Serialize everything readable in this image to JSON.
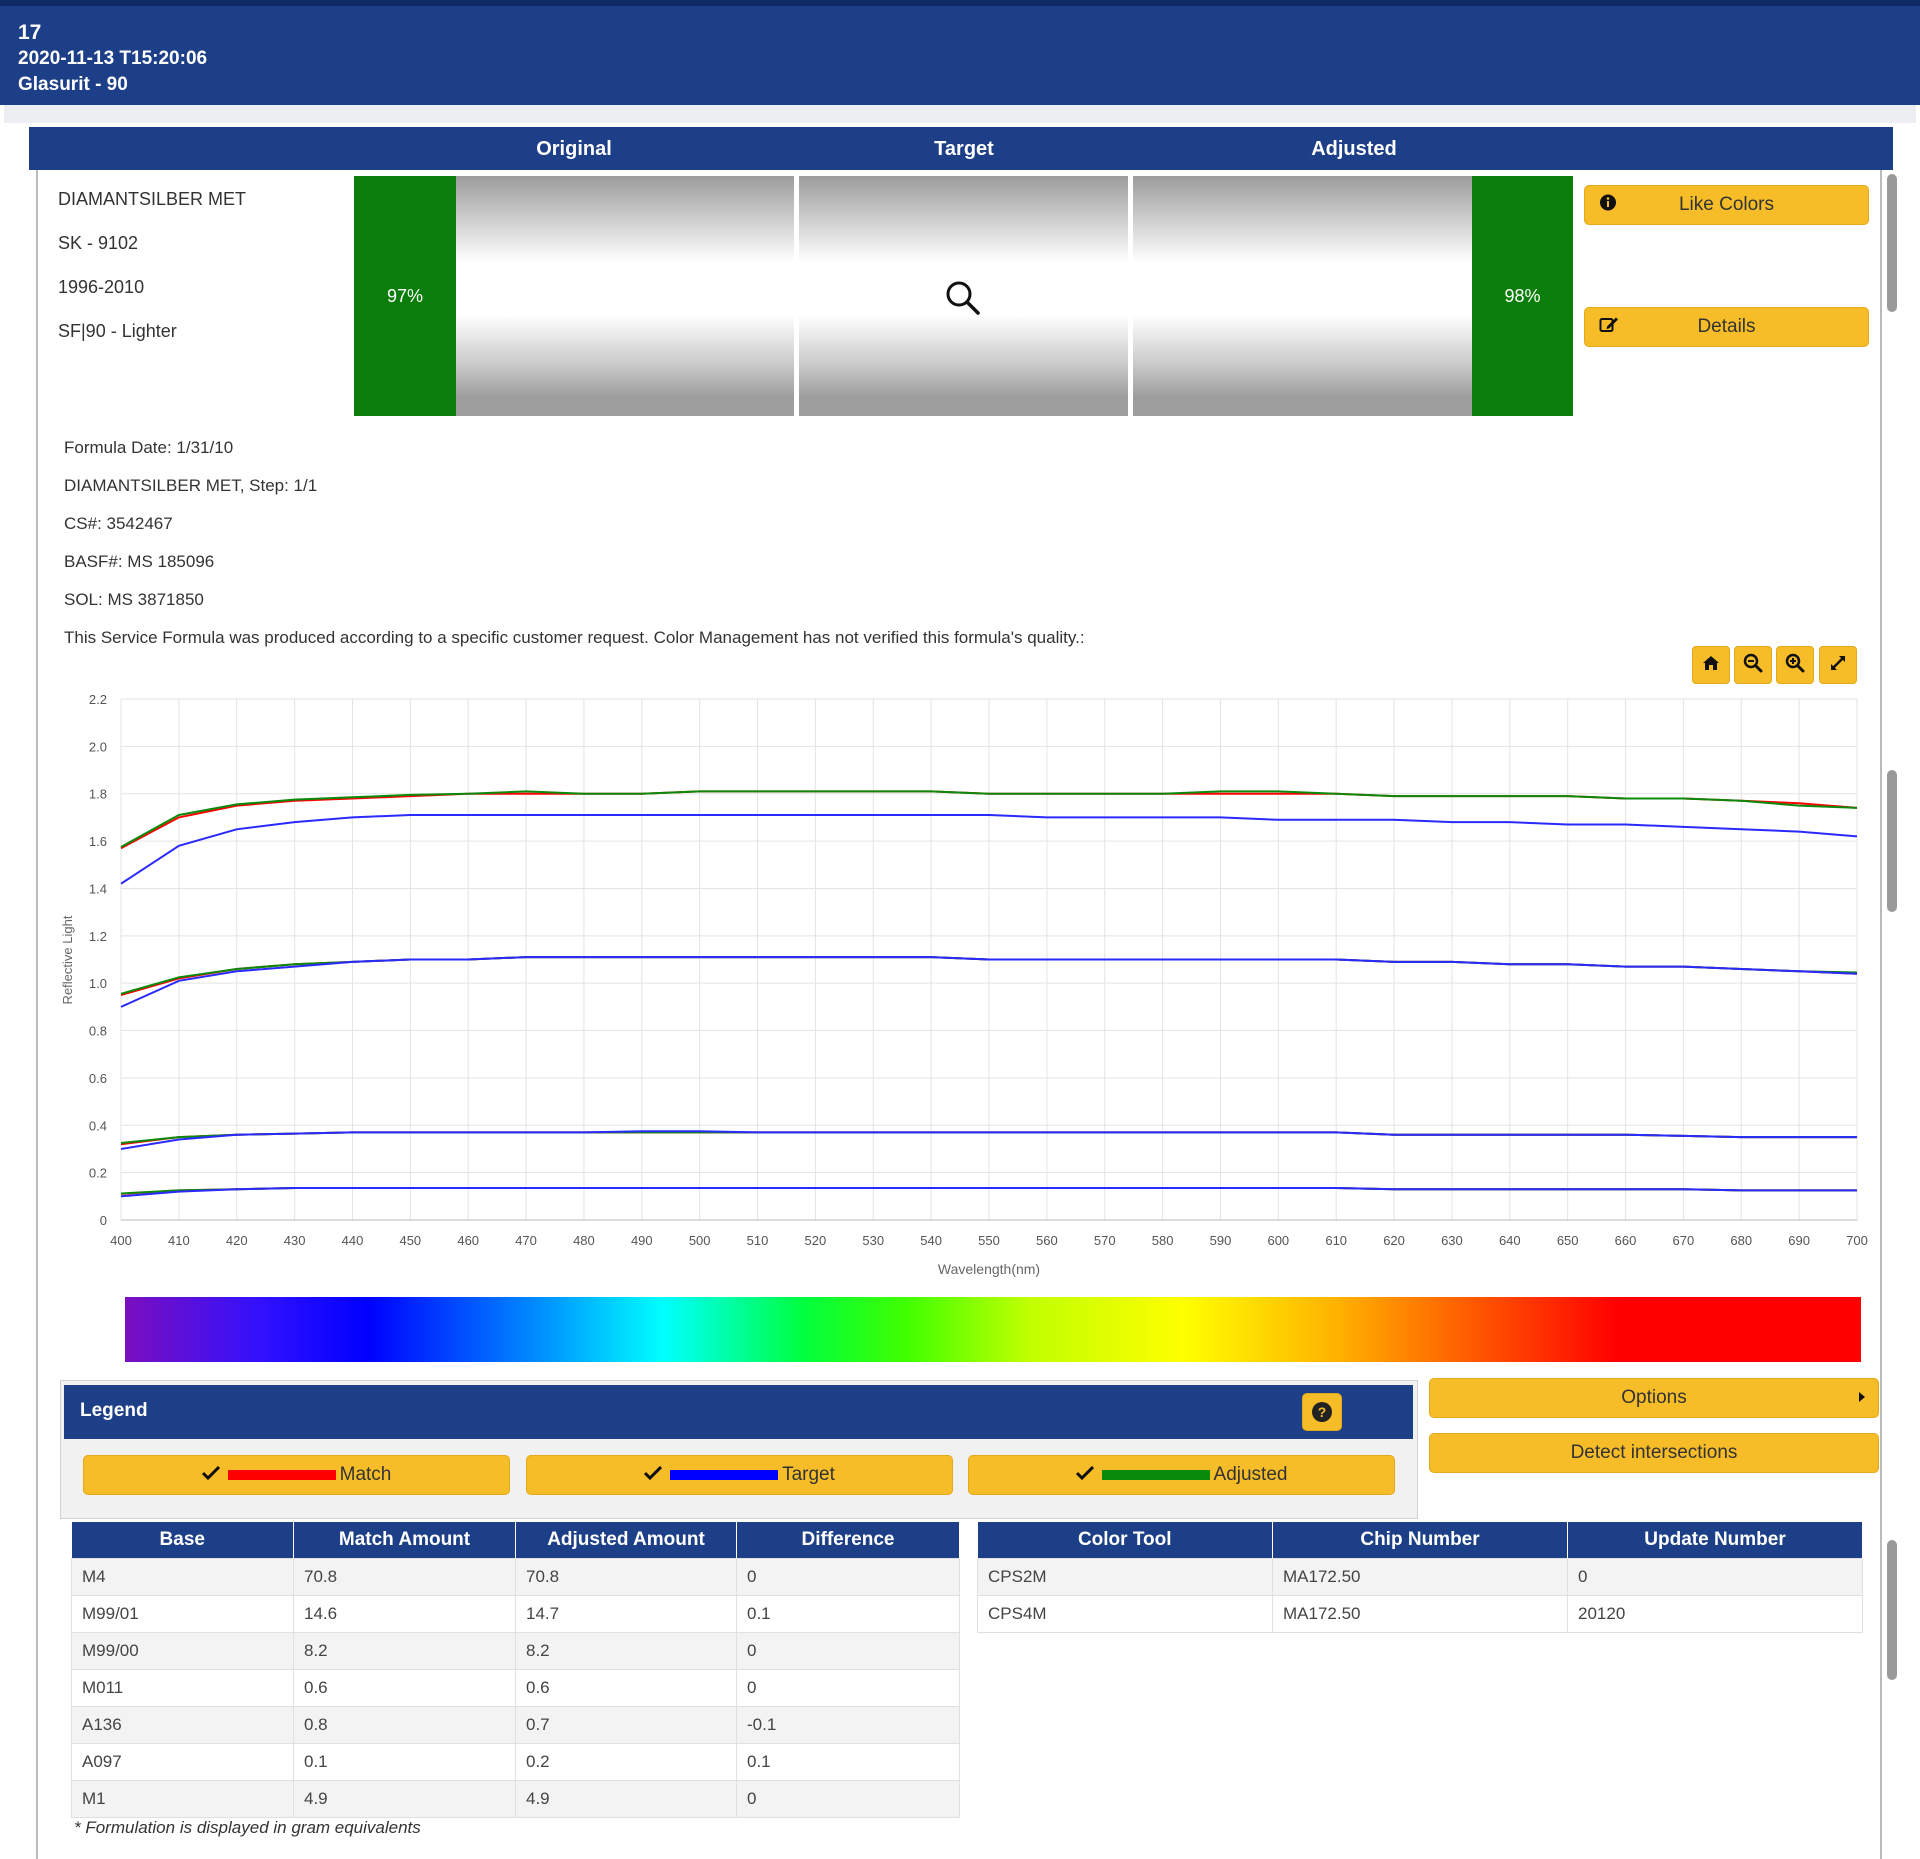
{
  "header": {
    "id": "17",
    "timestamp": "2020-11-13 T15:20:06",
    "brand": "Glasurit - 90"
  },
  "compare": {
    "columns": [
      "Original",
      "Target",
      "Adjusted"
    ],
    "original_match": "97%",
    "adjusted_match": "98%",
    "like_colors_label": "Like Colors",
    "details_label": "Details"
  },
  "color_meta": {
    "name": "DIAMANTSILBER MET",
    "code": "SK - 9102",
    "years": "1996-2010",
    "variant": "SF|90 - Lighter"
  },
  "formula_info": {
    "date": "Formula Date: 1/31/10",
    "step": "DIAMANTSILBER MET, Step: 1/1",
    "cs": "CS#: 3542467",
    "basf": "BASF#: MS 185096",
    "sol": "SOL: MS 3871850",
    "note": "This Service Formula was produced according to a specific customer request. Color Management has not verified this formula's quality.:"
  },
  "chart_data": {
    "type": "line",
    "xlabel": "Wavelength(nm)",
    "ylabel": "Reflective Light",
    "xlim": [
      400,
      700
    ],
    "ylim": [
      0,
      2.2
    ],
    "x_ticks": [
      400,
      410,
      420,
      430,
      440,
      450,
      460,
      470,
      480,
      490,
      500,
      510,
      520,
      530,
      540,
      550,
      560,
      570,
      580,
      590,
      600,
      610,
      620,
      630,
      640,
      650,
      660,
      670,
      680,
      690,
      700
    ],
    "y_ticks": [
      "0",
      "0.2",
      "0.4",
      "0.6",
      "0.8",
      "1.0",
      "1.2",
      "1.4",
      "1.6",
      "1.8",
      "2.0",
      "2.2"
    ],
    "x": [
      400,
      410,
      420,
      430,
      440,
      450,
      460,
      470,
      480,
      490,
      500,
      510,
      520,
      530,
      540,
      550,
      560,
      570,
      580,
      590,
      600,
      610,
      620,
      630,
      640,
      650,
      660,
      670,
      680,
      690,
      700
    ],
    "grid": true,
    "series": [
      {
        "name": "Match",
        "color": "#ff0000",
        "values": [
          1.57,
          1.7,
          1.75,
          1.77,
          1.78,
          1.79,
          1.8,
          1.8,
          1.8,
          1.8,
          1.81,
          1.81,
          1.81,
          1.81,
          1.81,
          1.8,
          1.8,
          1.8,
          1.8,
          1.8,
          1.8,
          1.8,
          1.79,
          1.79,
          1.79,
          1.79,
          1.78,
          1.78,
          1.77,
          1.76,
          1.74
        ]
      },
      {
        "name": "Adjusted",
        "color": "#0a8a0a",
        "values": [
          1.575,
          1.71,
          1.755,
          1.775,
          1.785,
          1.795,
          1.8,
          1.81,
          1.8,
          1.8,
          1.81,
          1.81,
          1.81,
          1.81,
          1.81,
          1.8,
          1.8,
          1.8,
          1.8,
          1.81,
          1.81,
          1.8,
          1.79,
          1.79,
          1.79,
          1.79,
          1.78,
          1.78,
          1.77,
          1.75,
          1.74
        ]
      },
      {
        "name": "Target",
        "color": "#2a2aff",
        "values": [
          1.42,
          1.58,
          1.65,
          1.68,
          1.7,
          1.71,
          1.71,
          1.71,
          1.71,
          1.71,
          1.71,
          1.71,
          1.71,
          1.71,
          1.71,
          1.71,
          1.7,
          1.7,
          1.7,
          1.7,
          1.69,
          1.69,
          1.69,
          1.68,
          1.68,
          1.67,
          1.67,
          1.66,
          1.65,
          1.64,
          1.62
        ]
      },
      {
        "name": "Match",
        "color": "#ff0000",
        "values": [
          0.95,
          1.02,
          1.06,
          1.08,
          1.09,
          1.1,
          1.1,
          1.11,
          1.11,
          1.11,
          1.11,
          1.11,
          1.11,
          1.11,
          1.11,
          1.1,
          1.1,
          1.1,
          1.1,
          1.1,
          1.1,
          1.1,
          1.09,
          1.09,
          1.08,
          1.08,
          1.07,
          1.07,
          1.06,
          1.05,
          1.04
        ]
      },
      {
        "name": "Adjusted",
        "color": "#0a8a0a",
        "values": [
          0.955,
          1.025,
          1.06,
          1.08,
          1.09,
          1.1,
          1.1,
          1.11,
          1.11,
          1.11,
          1.11,
          1.11,
          1.11,
          1.11,
          1.11,
          1.1,
          1.1,
          1.1,
          1.1,
          1.1,
          1.1,
          1.1,
          1.09,
          1.09,
          1.08,
          1.08,
          1.07,
          1.07,
          1.06,
          1.05,
          1.045
        ]
      },
      {
        "name": "Target",
        "color": "#2a2aff",
        "values": [
          0.9,
          1.01,
          1.05,
          1.07,
          1.09,
          1.1,
          1.1,
          1.11,
          1.11,
          1.11,
          1.11,
          1.11,
          1.11,
          1.11,
          1.11,
          1.1,
          1.1,
          1.1,
          1.1,
          1.1,
          1.1,
          1.1,
          1.09,
          1.09,
          1.08,
          1.08,
          1.07,
          1.07,
          1.06,
          1.05,
          1.04
        ]
      },
      {
        "name": "Match",
        "color": "#ff0000",
        "values": [
          0.32,
          0.35,
          0.36,
          0.365,
          0.37,
          0.37,
          0.37,
          0.37,
          0.37,
          0.37,
          0.37,
          0.37,
          0.37,
          0.37,
          0.37,
          0.37,
          0.37,
          0.37,
          0.37,
          0.37,
          0.37,
          0.37,
          0.36,
          0.36,
          0.36,
          0.36,
          0.36,
          0.355,
          0.35,
          0.35,
          0.35
        ]
      },
      {
        "name": "Adjusted",
        "color": "#0a8a0a",
        "values": [
          0.325,
          0.35,
          0.36,
          0.365,
          0.37,
          0.37,
          0.37,
          0.37,
          0.37,
          0.37,
          0.37,
          0.37,
          0.37,
          0.37,
          0.37,
          0.37,
          0.37,
          0.37,
          0.37,
          0.37,
          0.37,
          0.37,
          0.36,
          0.36,
          0.36,
          0.36,
          0.36,
          0.355,
          0.35,
          0.35,
          0.35
        ]
      },
      {
        "name": "Target",
        "color": "#2a2aff",
        "values": [
          0.3,
          0.34,
          0.36,
          0.365,
          0.37,
          0.37,
          0.37,
          0.37,
          0.37,
          0.375,
          0.375,
          0.37,
          0.37,
          0.37,
          0.37,
          0.37,
          0.37,
          0.37,
          0.37,
          0.37,
          0.37,
          0.37,
          0.36,
          0.36,
          0.36,
          0.36,
          0.36,
          0.355,
          0.35,
          0.35,
          0.35
        ]
      },
      {
        "name": "Match",
        "color": "#ff0000",
        "values": [
          0.11,
          0.125,
          0.13,
          0.135,
          0.135,
          0.135,
          0.135,
          0.135,
          0.135,
          0.135,
          0.135,
          0.135,
          0.135,
          0.135,
          0.135,
          0.135,
          0.135,
          0.135,
          0.135,
          0.135,
          0.135,
          0.135,
          0.13,
          0.13,
          0.13,
          0.13,
          0.13,
          0.13,
          0.125,
          0.125,
          0.125
        ]
      },
      {
        "name": "Adjusted",
        "color": "#0a8a0a",
        "values": [
          0.112,
          0.125,
          0.13,
          0.135,
          0.135,
          0.135,
          0.135,
          0.135,
          0.135,
          0.135,
          0.135,
          0.135,
          0.135,
          0.135,
          0.135,
          0.135,
          0.135,
          0.135,
          0.135,
          0.135,
          0.135,
          0.135,
          0.13,
          0.13,
          0.13,
          0.13,
          0.13,
          0.13,
          0.125,
          0.125,
          0.125
        ]
      },
      {
        "name": "Target",
        "color": "#2a2aff",
        "values": [
          0.1,
          0.12,
          0.13,
          0.135,
          0.135,
          0.135,
          0.135,
          0.135,
          0.135,
          0.135,
          0.135,
          0.135,
          0.135,
          0.135,
          0.135,
          0.135,
          0.135,
          0.135,
          0.135,
          0.135,
          0.135,
          0.135,
          0.13,
          0.13,
          0.13,
          0.13,
          0.13,
          0.13,
          0.125,
          0.125,
          0.125
        ]
      }
    ]
  },
  "legend": {
    "title": "Legend",
    "items": [
      {
        "label": "Match",
        "color": "#ff0000"
      },
      {
        "label": "Target",
        "color": "#0000ff"
      },
      {
        "label": "Adjusted",
        "color": "#0a8a0a"
      }
    ]
  },
  "options_label": "Options",
  "detect_label": "Detect intersections",
  "base_table": {
    "headers": [
      "Base",
      "Match Amount",
      "Adjusted Amount",
      "Difference"
    ],
    "rows": [
      [
        "M4",
        "70.8",
        "70.8",
        "0"
      ],
      [
        "M99/01",
        "14.6",
        "14.7",
        "0.1"
      ],
      [
        "M99/00",
        "8.2",
        "8.2",
        "0"
      ],
      [
        "M011",
        "0.6",
        "0.6",
        "0"
      ],
      [
        "A136",
        "0.8",
        "0.7",
        "-0.1"
      ],
      [
        "A097",
        "0.1",
        "0.2",
        "0.1"
      ],
      [
        "M1",
        "4.9",
        "4.9",
        "0"
      ]
    ]
  },
  "tool_table": {
    "headers": [
      "Color Tool",
      "Chip Number",
      "Update Number"
    ],
    "rows": [
      [
        "CPS2M",
        "MA172.50",
        "0"
      ],
      [
        "CPS4M",
        "MA172.50",
        "20120"
      ]
    ]
  },
  "footnote": "* Formulation is displayed in gram equivalents"
}
